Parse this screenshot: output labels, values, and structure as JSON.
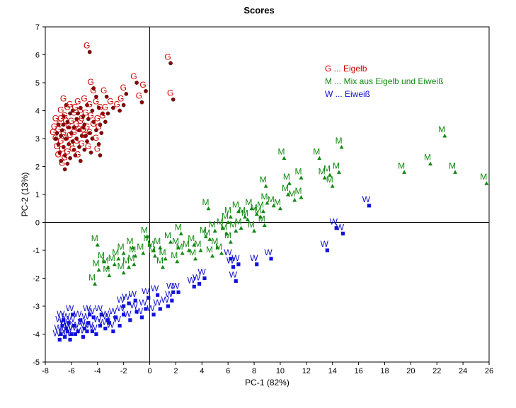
{
  "chart_data": {
    "type": "scatter",
    "title": "Scores",
    "xlabel": "PC-1 (82%)",
    "ylabel": "PC-2 (13%)",
    "xlim": [
      -8,
      26
    ],
    "ylim": [
      -5,
      7
    ],
    "xticks": [
      -8,
      -6,
      -4,
      -2,
      0,
      2,
      4,
      6,
      8,
      10,
      12,
      14,
      16,
      18,
      20,
      22,
      24,
      26
    ],
    "yticks": [
      -5,
      -4,
      -3,
      -2,
      -1,
      0,
      1,
      2,
      3,
      4,
      5,
      6,
      7
    ],
    "grid": false,
    "legend_position": "top-right",
    "series": [
      {
        "label": "G",
        "legend": "G ... Eigelb",
        "color": "#cc0000",
        "marker_color": "#8b0000",
        "marker": "circle",
        "points": [
          [
            -4.6,
            6.1
          ],
          [
            -1.0,
            5.0
          ],
          [
            1.6,
            5.7
          ],
          [
            -4.3,
            4.8
          ],
          [
            -1.8,
            4.6
          ],
          [
            -0.3,
            4.7
          ],
          [
            1.8,
            4.4
          ],
          [
            -0.6,
            4.3
          ],
          [
            -4.1,
            4.5
          ],
          [
            -3.3,
            4.5
          ],
          [
            -2.8,
            4.1
          ],
          [
            -2.3,
            4.0
          ],
          [
            -2.0,
            4.2
          ],
          [
            -6.4,
            4.2
          ],
          [
            -5.9,
            4.0
          ],
          [
            -5.3,
            4.1
          ],
          [
            -4.8,
            4.2
          ],
          [
            -4.4,
            4.0
          ],
          [
            -3.9,
            4.1
          ],
          [
            -3.6,
            3.9
          ],
          [
            -3.2,
            3.9
          ],
          [
            -6.6,
            3.8
          ],
          [
            -6.1,
            3.9
          ],
          [
            -5.6,
            3.7
          ],
          [
            -5.1,
            3.8
          ],
          [
            -4.7,
            3.7
          ],
          [
            -4.3,
            3.6
          ],
          [
            -3.8,
            3.5
          ],
          [
            -3.4,
            3.6
          ],
          [
            -7.0,
            3.5
          ],
          [
            -6.6,
            3.5
          ],
          [
            -6.2,
            3.4
          ],
          [
            -5.8,
            3.4
          ],
          [
            -5.4,
            3.3
          ],
          [
            -5.0,
            3.5
          ],
          [
            -4.6,
            3.2
          ],
          [
            -4.1,
            3.3
          ],
          [
            -3.7,
            3.2
          ],
          [
            -7.1,
            3.2
          ],
          [
            -6.8,
            3.1
          ],
          [
            -6.4,
            3.0
          ],
          [
            -6.0,
            3.2
          ],
          [
            -5.6,
            3.0
          ],
          [
            -5.2,
            3.1
          ],
          [
            -4.8,
            2.9
          ],
          [
            -4.4,
            3.0
          ],
          [
            -3.9,
            2.8
          ],
          [
            -7.0,
            2.8
          ],
          [
            -6.6,
            2.7
          ],
          [
            -6.2,
            2.8
          ],
          [
            -5.8,
            2.6
          ],
          [
            -5.4,
            2.7
          ],
          [
            -5.0,
            2.6
          ],
          [
            -4.5,
            2.5
          ],
          [
            -6.9,
            2.5
          ],
          [
            -6.5,
            2.4
          ],
          [
            -6.1,
            2.3
          ],
          [
            -5.7,
            2.4
          ],
          [
            -5.3,
            2.2
          ],
          [
            -6.8,
            2.2
          ],
          [
            -6.3,
            2.1
          ],
          [
            -6.5,
            1.9
          ],
          [
            -3.8,
            2.4
          ],
          [
            -6.7,
            3.3
          ],
          [
            -5.9,
            2.9
          ],
          [
            -5.1,
            3.4
          ],
          [
            -6.3,
            3.6
          ],
          [
            -5.5,
            3.9
          ],
          [
            -4.9,
            3.1
          ],
          [
            -7.2,
            3.0
          ]
        ]
      },
      {
        "label": "M",
        "legend": "M ... Mix aus Eigelb und Eiweiß",
        "color": "#118811",
        "marker_color": "#118811",
        "marker": "triangle",
        "points": [
          [
            22.6,
            3.1
          ],
          [
            14.7,
            2.7
          ],
          [
            13.0,
            2.3
          ],
          [
            10.3,
            2.3
          ],
          [
            19.5,
            1.8
          ],
          [
            21.5,
            2.1
          ],
          [
            23.4,
            1.8
          ],
          [
            25.8,
            1.4
          ],
          [
            14.5,
            1.8
          ],
          [
            13.8,
            1.7
          ],
          [
            13.4,
            1.6
          ],
          [
            14.0,
            1.3
          ],
          [
            11.6,
            1.6
          ],
          [
            10.7,
            1.4
          ],
          [
            8.9,
            1.3
          ],
          [
            10.6,
            1.0
          ],
          [
            11.6,
            0.9
          ],
          [
            11.1,
            0.8
          ],
          [
            10.0,
            0.5
          ],
          [
            9.5,
            0.6
          ],
          [
            9.0,
            0.7
          ],
          [
            8.7,
            0.4
          ],
          [
            7.8,
            0.5
          ],
          [
            8.2,
            0.3
          ],
          [
            7.3,
            0.2
          ],
          [
            6.8,
            0.4
          ],
          [
            6.2,
            0.2
          ],
          [
            6.0,
            0.0
          ],
          [
            7.0,
            -0.2
          ],
          [
            7.5,
            0.1
          ],
          [
            8.5,
            0.2
          ],
          [
            8.8,
            -0.1
          ],
          [
            8.0,
            -0.3
          ],
          [
            6.6,
            -0.3
          ],
          [
            5.9,
            -0.4
          ],
          [
            5.0,
            -0.3
          ],
          [
            4.6,
            -0.6
          ],
          [
            5.2,
            -0.9
          ],
          [
            5.6,
            -0.2
          ],
          [
            6.2,
            -0.7
          ],
          [
            5.5,
            -1.1
          ],
          [
            4.8,
            -1.2
          ],
          [
            4.3,
            -0.5
          ],
          [
            3.9,
            -1.0
          ],
          [
            3.4,
            -0.8
          ],
          [
            3.0,
            -1.0
          ],
          [
            2.5,
            -1.1
          ],
          [
            2.2,
            -0.9
          ],
          [
            1.6,
            -0.7
          ],
          [
            1.2,
            -1.3
          ],
          [
            0.8,
            -0.9
          ],
          [
            0.3,
            -1.0
          ],
          [
            0.0,
            -0.8
          ],
          [
            -0.5,
            -1.1
          ],
          [
            -1.1,
            -1.2
          ],
          [
            -1.3,
            -0.9
          ],
          [
            -2.0,
            -1.1
          ],
          [
            -2.4,
            -1.3
          ],
          [
            -2.7,
            -1.5
          ],
          [
            -3.2,
            -1.6
          ],
          [
            -3.5,
            -1.4
          ],
          [
            -3.9,
            -1.7
          ],
          [
            -4.2,
            -2.2
          ],
          [
            -4.0,
            -0.8
          ],
          [
            -0.2,
            -0.5
          ],
          [
            1.0,
            -1.6
          ],
          [
            2.4,
            -0.4
          ],
          [
            3.5,
            -1.3
          ],
          [
            -1.6,
            -1.6
          ],
          [
            -2.0,
            -1.8
          ],
          [
            -1.2,
            -1.5
          ],
          [
            0.4,
            -1.2
          ],
          [
            4.5,
            0.5
          ],
          [
            2.1,
            -1.4
          ],
          [
            -3.1,
            -1.9
          ]
        ]
      },
      {
        "label": "W",
        "legend": "W ... Eiweiß",
        "color": "#1111cc",
        "marker_color": "#1111dd",
        "marker": "square",
        "points": [
          [
            16.8,
            0.6
          ],
          [
            14.3,
            -0.2
          ],
          [
            14.8,
            -0.4
          ],
          [
            13.6,
            -1.0
          ],
          [
            9.3,
            -1.3
          ],
          [
            8.2,
            -1.5
          ],
          [
            6.8,
            -1.5
          ],
          [
            6.4,
            -1.6
          ],
          [
            6.2,
            -1.3
          ],
          [
            6.6,
            -2.1
          ],
          [
            4.2,
            -2.0
          ],
          [
            3.8,
            -2.2
          ],
          [
            3.4,
            -2.3
          ],
          [
            2.2,
            -2.5
          ],
          [
            1.8,
            -2.5
          ],
          [
            1.7,
            -2.8
          ],
          [
            1.4,
            -3.0
          ],
          [
            0.8,
            -3.1
          ],
          [
            0.3,
            -3.3
          ],
          [
            -0.3,
            -3.1
          ],
          [
            -0.6,
            -3.4
          ],
          [
            -1.0,
            -3.2
          ],
          [
            -1.5,
            -3.5
          ],
          [
            -2.0,
            -3.3
          ],
          [
            -2.3,
            -3.7
          ],
          [
            -2.8,
            -3.9
          ],
          [
            -3.1,
            -3.6
          ],
          [
            -3.4,
            -3.8
          ],
          [
            -3.8,
            -3.7
          ],
          [
            -4.1,
            -4.0
          ],
          [
            -4.4,
            -3.9
          ],
          [
            -4.7,
            -3.6
          ],
          [
            -5.0,
            -3.8
          ],
          [
            -5.3,
            -3.5
          ],
          [
            -5.5,
            -3.9
          ],
          [
            -5.8,
            -3.7
          ],
          [
            -6.0,
            -4.0
          ],
          [
            -6.2,
            -3.6
          ],
          [
            -6.4,
            -3.8
          ],
          [
            -6.6,
            -3.5
          ],
          [
            -6.8,
            -4.0
          ],
          [
            -6.9,
            -4.2
          ],
          [
            -6.5,
            -4.1
          ],
          [
            -6.1,
            -4.2
          ],
          [
            -5.7,
            -4.0
          ],
          [
            -5.1,
            -4.1
          ],
          [
            -4.8,
            -3.9
          ],
          [
            -4.3,
            -3.4
          ],
          [
            -3.7,
            -3.3
          ],
          [
            -3.2,
            -3.5
          ],
          [
            -2.6,
            -3.4
          ],
          [
            -2.0,
            -3.0
          ],
          [
            -1.6,
            -2.9
          ],
          [
            -1.1,
            -2.8
          ],
          [
            -0.1,
            -2.7
          ],
          [
            0.6,
            -2.6
          ],
          [
            -5.9,
            -3.3
          ],
          [
            -6.3,
            -3.9
          ],
          [
            -6.7,
            -3.7
          ],
          [
            -4.6,
            -3.3
          ]
        ]
      }
    ]
  }
}
